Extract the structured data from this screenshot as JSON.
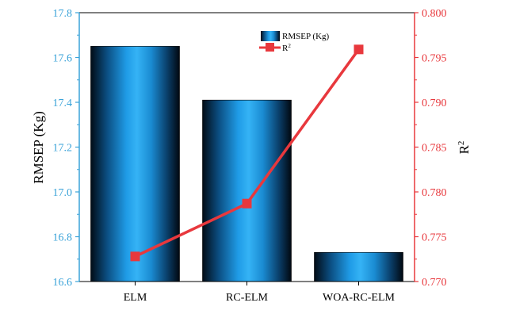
{
  "chart_data": {
    "type": "bar+line",
    "categories": [
      "ELM",
      "RC-ELM",
      "WOA-RC-ELM"
    ],
    "series": [
      {
        "name": "RMSEP (Kg)",
        "type": "bar",
        "axis": "left",
        "values": [
          17.65,
          17.41,
          16.73
        ]
      },
      {
        "name": "R²",
        "type": "line",
        "axis": "right",
        "values": [
          0.7728,
          0.7787,
          0.7959
        ]
      }
    ],
    "left_axis": {
      "label": "RMSEP (Kg)",
      "range": [
        16.6,
        17.8
      ],
      "ticks": [
        "16.6",
        "16.8",
        "17.0",
        "17.2",
        "17.4",
        "17.6",
        "17.8"
      ],
      "color": "#3aa3d9"
    },
    "right_axis": {
      "label": "R",
      "label_sup": "2",
      "range": [
        0.77,
        0.8
      ],
      "ticks": [
        "0.770",
        "0.775",
        "0.780",
        "0.785",
        "0.790",
        "0.795",
        "0.800"
      ],
      "color": "#e8383d"
    },
    "legend": {
      "placement": "top-right",
      "bar_label": "RMSEP (Kg)",
      "line_label": "R",
      "line_label_sup": "2"
    },
    "grid": false
  }
}
